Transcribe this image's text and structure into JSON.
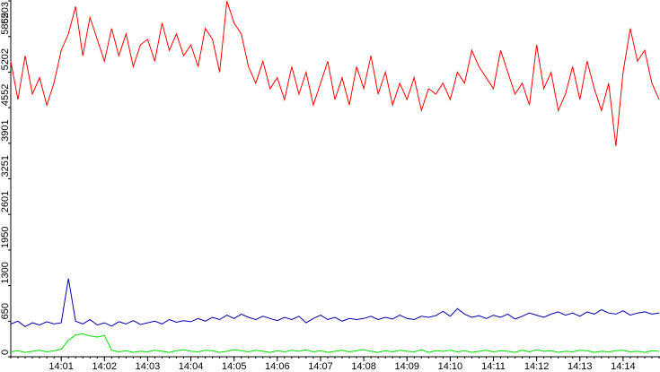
{
  "chart_data": {
    "type": "line",
    "categories": [
      null,
      null,
      null,
      null,
      null,
      null,
      null,
      "14:01",
      null,
      null,
      null,
      null,
      null,
      "14:02",
      null,
      null,
      null,
      null,
      null,
      "14:03",
      null,
      null,
      null,
      null,
      null,
      "14:04",
      null,
      null,
      null,
      null,
      null,
      "14:05",
      null,
      null,
      null,
      null,
      null,
      "14:06",
      null,
      null,
      null,
      null,
      null,
      "14:07",
      null,
      null,
      null,
      null,
      null,
      "14:08",
      null,
      null,
      null,
      null,
      null,
      "14:09",
      null,
      null,
      null,
      null,
      null,
      "14:10",
      null,
      null,
      null,
      null,
      null,
      "14:11",
      null,
      null,
      null,
      null,
      null,
      "14:12",
      null,
      null,
      null,
      null,
      null,
      "14:13",
      null,
      null,
      null,
      null,
      null,
      "14:14",
      null,
      null,
      null,
      null,
      null
    ],
    "series": [
      {
        "color": "#ff0000",
        "values": [
          5400,
          4700,
          5500,
          4800,
          5100,
          4600,
          5000,
          5600,
          5900,
          6400,
          5500,
          6200,
          5800,
          5400,
          6000,
          5500,
          5900,
          5300,
          5700,
          5800,
          5400,
          6100,
          5600,
          5900,
          5500,
          5700,
          5300,
          6000,
          5800,
          5200,
          6500,
          6100,
          5900,
          5300,
          5000,
          5400,
          4900,
          5100,
          4700,
          5300,
          4800,
          5200,
          4600,
          5000,
          5400,
          4700,
          5100,
          4600,
          5300,
          4900,
          5500,
          4800,
          5200,
          4600,
          5000,
          4700,
          5100,
          4500,
          4900,
          4800,
          5000,
          4700,
          5200,
          5000,
          5600,
          5300,
          5100,
          4900,
          5600,
          5200,
          4800,
          5000,
          4600,
          5700,
          4900,
          5200,
          4500,
          4800,
          5300,
          4700,
          5400,
          4900,
          4500,
          5000,
          3850,
          5200,
          6000,
          5400,
          5600,
          5000,
          4700
        ]
      },
      {
        "color": "#0000aa",
        "values": [
          600,
          650,
          550,
          620,
          580,
          640,
          600,
          620,
          1430,
          650,
          600,
          680,
          580,
          620,
          560,
          640,
          600,
          660,
          590,
          620,
          650,
          600,
          680,
          630,
          660,
          640,
          700,
          650,
          720,
          680,
          760,
          700,
          780,
          720,
          680,
          740,
          700,
          660,
          720,
          680,
          740,
          620,
          700,
          760,
          680,
          720,
          650,
          700,
          680,
          700,
          740,
          680,
          720,
          690,
          760,
          700,
          680,
          740,
          720,
          750,
          830,
          740,
          880,
          780,
          720,
          750,
          700,
          760,
          720,
          780,
          690,
          740,
          800,
          760,
          720,
          780,
          820,
          760,
          800,
          740,
          820,
          780,
          860,
          800,
          780,
          840,
          760,
          800,
          820,
          780,
          800
        ]
      },
      {
        "color": "#00dd00",
        "values": [
          90,
          110,
          80,
          100,
          120,
          90,
          110,
          140,
          300,
          400,
          420,
          380,
          360,
          390,
          120,
          90,
          110,
          80,
          100,
          90,
          120,
          100,
          80,
          110,
          130,
          100,
          90,
          120,
          110,
          80,
          100,
          130,
          110,
          90,
          120,
          100,
          80,
          110,
          90,
          120,
          100,
          130,
          90,
          110,
          80,
          100,
          120,
          90,
          110,
          130,
          100,
          80,
          110,
          90,
          120,
          100,
          90,
          130,
          80,
          110,
          100,
          120,
          90,
          110,
          80,
          100,
          120,
          90,
          110,
          100,
          80,
          120,
          90,
          130,
          100,
          110,
          80,
          100,
          90,
          120,
          110,
          80,
          100,
          90,
          110,
          120,
          90,
          100,
          80,
          110,
          100
        ]
      }
    ],
    "ylim": [
      0,
      6503
    ],
    "yticks": [
      0,
      650,
      1300,
      1950,
      2601,
      3251,
      3901,
      4552,
      5202,
      5852,
      6503
    ]
  }
}
